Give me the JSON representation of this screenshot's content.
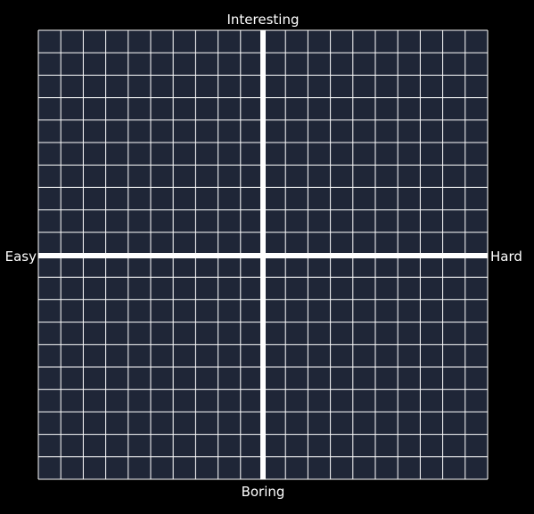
{
  "chart_data": {
    "type": "quadrant",
    "axes": {
      "top_label": "Interesting",
      "bottom_label": "Boring",
      "left_label": "Easy",
      "right_label": "Hard"
    },
    "grid": {
      "columns": 20,
      "rows": 20,
      "visible": true
    },
    "points": []
  },
  "colors": {
    "background": "#000000",
    "grid_fill": "#1f2637",
    "grid_line": "#ffffff",
    "axis_line": "#ffffff",
    "label_text": "#ffffff"
  }
}
